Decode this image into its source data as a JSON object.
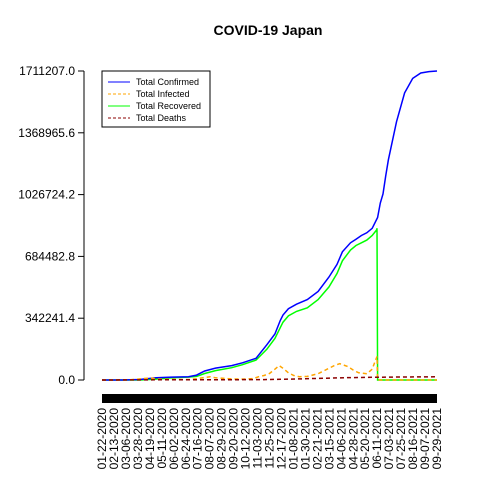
{
  "chart_data": {
    "type": "line",
    "title": "COVID-19 Japan",
    "xlabel": "",
    "ylabel": "",
    "ylim": [
      0,
      1711207.0
    ],
    "yticks": [
      "0.0",
      "342241.4",
      "684482.8",
      "1026724.2",
      "1368965.6",
      "1711207.0"
    ],
    "ytick_values": [
      0,
      342241.4,
      684482.8,
      1026724.2,
      1368965.6,
      1711207.0
    ],
    "xticks": [
      "01-22-2020",
      "02-13-2020",
      "03-06-2020",
      "03-28-2020",
      "04-19-2020",
      "05-11-2020",
      "06-02-2020",
      "06-24-2020",
      "07-16-2020",
      "08-07-2020",
      "08-29-2020",
      "09-20-2020",
      "10-12-2020",
      "11-03-2020",
      "11-25-2020",
      "12-17-2020",
      "01-08-2021",
      "01-30-2021",
      "02-21-2021",
      "03-15-2021",
      "04-06-2021",
      "04-28-2021",
      "05-20-2021",
      "06-11-2021",
      "07-03-2021",
      "07-25-2021",
      "08-16-2021",
      "09-07-2021",
      "09-29-2021"
    ],
    "x_range_days": [
      0,
      620
    ],
    "legend_position": "top-left",
    "grid": false,
    "series": [
      {
        "name": "Total Confirmed",
        "color": "#0000ff",
        "dash": "solid",
        "x": [
          0,
          40,
          70,
          100,
          130,
          160,
          175,
          190,
          210,
          240,
          260,
          285,
          305,
          320,
          330,
          335,
          345,
          360,
          380,
          400,
          420,
          435,
          445,
          460,
          470,
          480,
          490,
          500,
          510,
          515,
          520,
          525,
          530,
          545,
          560,
          575,
          590,
          605,
          620
        ],
        "y": [
          0,
          200,
          2500,
          12000,
          16000,
          18000,
          27000,
          50000,
          66000,
          80000,
          95000,
          120000,
          195000,
          255000,
          330000,
          360000,
          395000,
          420000,
          445000,
          490000,
          570000,
          640000,
          710000,
          760000,
          780000,
          800000,
          815000,
          840000,
          900000,
          980000,
          1030000,
          1130000,
          1220000,
          1430000,
          1590000,
          1670000,
          1700000,
          1708000,
          1711207
        ]
      },
      {
        "name": "Total Infected",
        "color": "#ffa500",
        "dash": "dashed",
        "x": [
          0,
          40,
          60,
          75,
          90,
          105,
          130,
          160,
          175,
          190,
          200,
          210,
          240,
          260,
          280,
          290,
          300,
          310,
          320,
          328,
          335,
          345,
          355,
          365,
          380,
          400,
          420,
          430,
          440,
          455,
          465,
          475,
          490,
          500,
          505,
          509,
          510,
          620
        ],
        "y": [
          0,
          200,
          2500,
          8000,
          11000,
          5000,
          3500,
          3000,
          7000,
          14000,
          18000,
          12000,
          6000,
          5000,
          8000,
          18000,
          25000,
          36000,
          60000,
          80000,
          65000,
          40000,
          25000,
          18000,
          20000,
          35000,
          65000,
          80000,
          90000,
          75000,
          55000,
          40000,
          35000,
          60000,
          100000,
          130000,
          0,
          0
        ]
      },
      {
        "name": "Total Recovered",
        "color": "#00ff00",
        "dash": "solid",
        "x": [
          0,
          70,
          100,
          130,
          160,
          175,
          190,
          210,
          240,
          260,
          285,
          305,
          320,
          330,
          335,
          345,
          360,
          380,
          400,
          420,
          435,
          445,
          460,
          470,
          480,
          490,
          500,
          508,
          509,
          510,
          620
        ],
        "y": [
          0,
          0,
          5000,
          12000,
          16000,
          20000,
          36000,
          52000,
          68000,
          85000,
          110000,
          170000,
          230000,
          290000,
          320000,
          355000,
          380000,
          400000,
          445000,
          515000,
          590000,
          660000,
          720000,
          745000,
          760000,
          775000,
          800000,
          830000,
          840000,
          0,
          0
        ]
      },
      {
        "name": "Total Deaths",
        "color": "#8b0000",
        "dash": "dashed",
        "x": [
          0,
          100,
          200,
          300,
          350,
          400,
          450,
          500,
          550,
          620
        ],
        "y": [
          0,
          900,
          1300,
          2100,
          5000,
          8900,
          12800,
          15100,
          16700,
          17800
        ]
      }
    ]
  }
}
